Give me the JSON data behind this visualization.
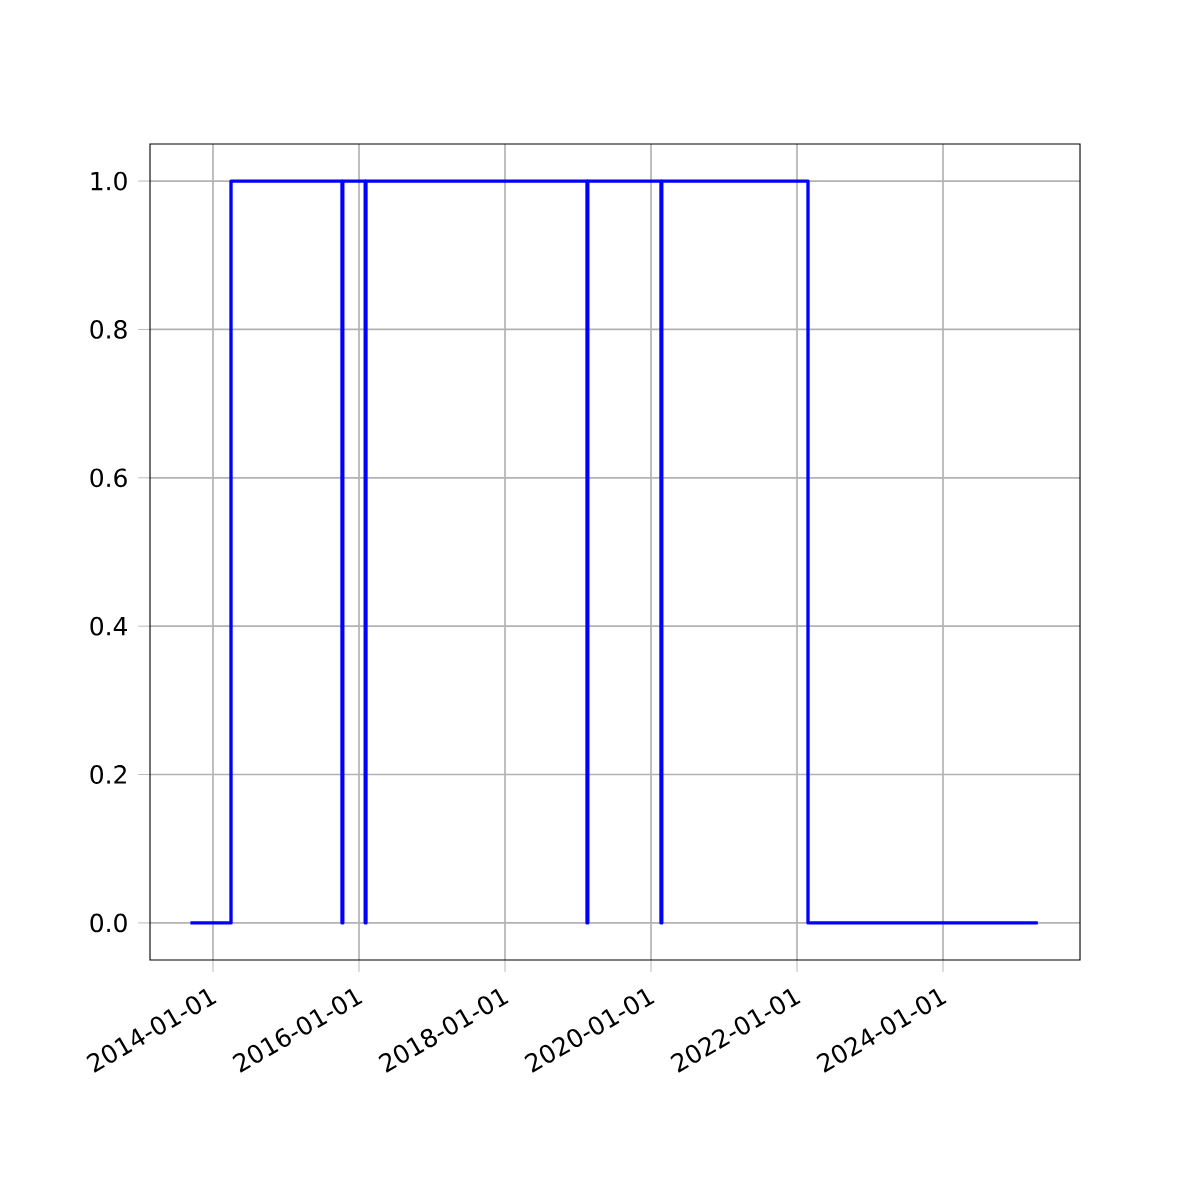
{
  "chart_data": {
    "type": "step",
    "x": [
      "2013-09-10",
      "2014-04-01",
      "2015-10-08",
      "2015-10-12",
      "2016-02-01",
      "2016-02-05",
      "2019-02-15",
      "2019-02-19",
      "2020-02-20",
      "2020-02-24",
      "2022-02-25",
      "2025-04-20"
    ],
    "values": [
      0,
      1,
      0,
      1,
      0,
      1,
      0,
      1,
      0,
      1,
      0,
      0
    ],
    "color": "#0000ff",
    "xlim": [
      "2013-02-20",
      "2025-11-17"
    ],
    "xticks": [
      "2014-01-01",
      "2016-01-01",
      "2018-01-01",
      "2020-01-01",
      "2022-01-01",
      "2024-01-01"
    ],
    "ylim": [
      -0.05,
      1.05
    ],
    "yticks": [
      {
        "value": 0,
        "label": "0.0"
      },
      {
        "value": 0.2,
        "label": "0.2"
      },
      {
        "value": 0.4,
        "label": "0.4"
      },
      {
        "value": 0.6,
        "label": "0.6"
      },
      {
        "value": 0.8,
        "label": "0.8"
      },
      {
        "value": 1,
        "label": "1.0"
      }
    ],
    "grid": true,
    "marker": "none",
    "line_style": "solid"
  }
}
